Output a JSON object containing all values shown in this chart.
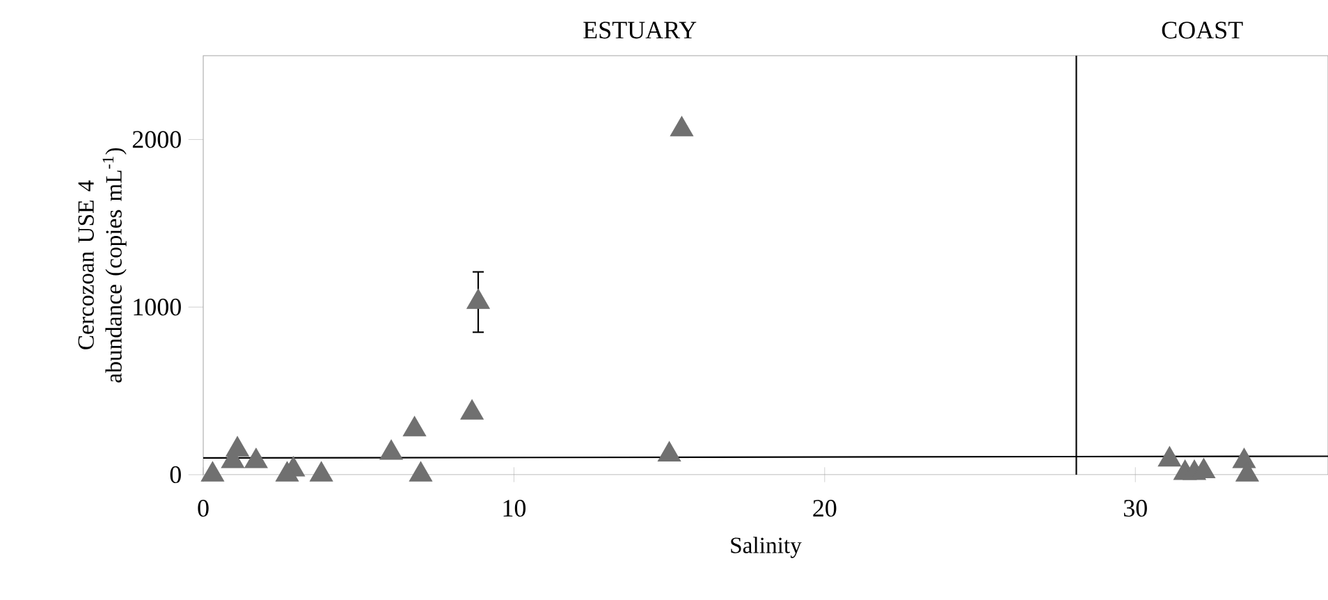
{
  "chart_data": {
    "type": "scatter",
    "xlabel": "Salinity",
    "ylabel": "Cercozoan USE 4 abundance (copies mL$^{-1}$)",
    "annotations": [
      "ESTUARY",
      "COAST"
    ],
    "marker": "triangle",
    "xlim": [
      0,
      36.2
    ],
    "ylim": [
      0,
      2500
    ],
    "xticks": [
      0,
      10,
      20,
      30
    ],
    "yticks": [
      0,
      1000,
      2000
    ],
    "ref_lines": [
      {
        "axis": "x",
        "value": 28.1,
        "color": "#000000"
      }
    ],
    "series": [
      {
        "color": "#707070",
        "x": [
          0.3,
          0.95,
          1.1,
          1.7,
          2.9,
          2.7,
          3.8,
          6.05,
          6.8,
          7.0,
          8.65,
          8.85,
          15.0,
          15.4,
          31.1,
          31.6,
          31.9,
          32.2,
          33.5,
          33.6
        ],
        "values": [
          0,
          80,
          150,
          80,
          30,
          0,
          0,
          130,
          270,
          0,
          370,
          1030,
          120,
          2060,
          90,
          10,
          10,
          20,
          80,
          0
        ],
        "errors": [
          null,
          null,
          null,
          null,
          null,
          null,
          null,
          null,
          null,
          null,
          null,
          180,
          null,
          null,
          null,
          null,
          null,
          null,
          null,
          null
        ]
      },
      {
        "type": "line",
        "color": "#000000",
        "marker": "none",
        "x": [
          0,
          36.2
        ],
        "values": [
          100,
          110
        ]
      }
    ]
  }
}
